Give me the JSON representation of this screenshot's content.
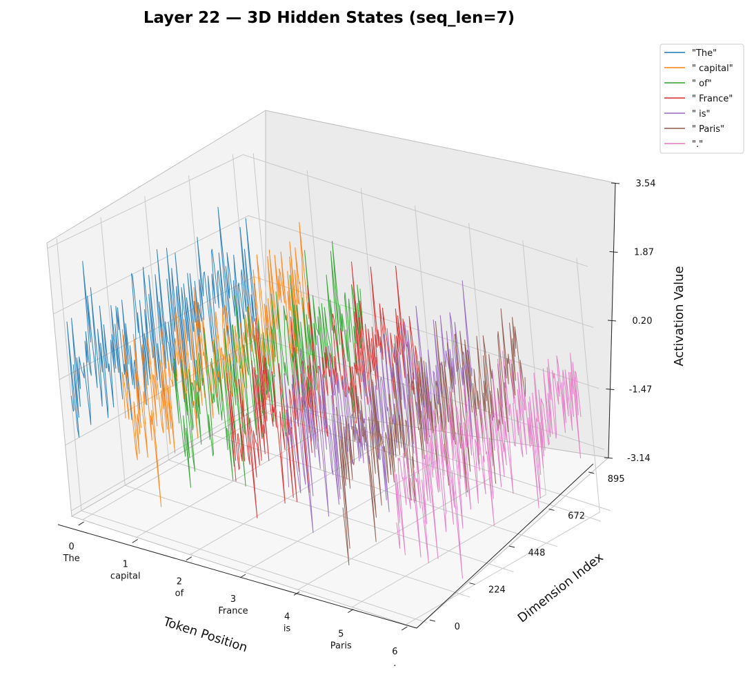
{
  "chart_data": {
    "type": "line-3d",
    "title": "Layer 22 — 3D Hidden States (seq_len=7)",
    "xlabel": "Token Position",
    "ylabel": "Dimension Index",
    "zlabel": "Activation Value",
    "x_ticks": [
      {
        "value": "0",
        "token": "The"
      },
      {
        "value": "1",
        "token": "capital"
      },
      {
        "value": "2",
        "token": "of"
      },
      {
        "value": "3",
        "token": "France"
      },
      {
        "value": "4",
        "token": "is"
      },
      {
        "value": "5",
        "token": "Paris"
      },
      {
        "value": "6",
        "token": "."
      }
    ],
    "y_ticks": [
      "0",
      "224",
      "448",
      "672",
      "895"
    ],
    "z_ticks": [
      "-3.14",
      "-1.47",
      "0.20",
      "1.87",
      "3.54"
    ],
    "zlim": [
      -3.14,
      3.54
    ],
    "ylim": [
      0,
      895
    ],
    "xlim": [
      0,
      6
    ],
    "legend_placement": "top-right",
    "grid": true,
    "series": [
      {
        "name": "\"The\"",
        "x": 0,
        "color": "#1f77b4"
      },
      {
        "name": "\" capital\"",
        "x": 1,
        "color": "#ff7f0e"
      },
      {
        "name": "\" of\"",
        "x": 2,
        "color": "#2ca02c"
      },
      {
        "name": "\" France\"",
        "x": 3,
        "color": "#d62728"
      },
      {
        "name": "\" is\"",
        "x": 4,
        "color": "#9467bd"
      },
      {
        "name": "\" Paris\"",
        "x": 5,
        "color": "#8c564b"
      },
      {
        "name": "\".\"",
        "x": 6,
        "color": "#e377c2"
      }
    ]
  }
}
